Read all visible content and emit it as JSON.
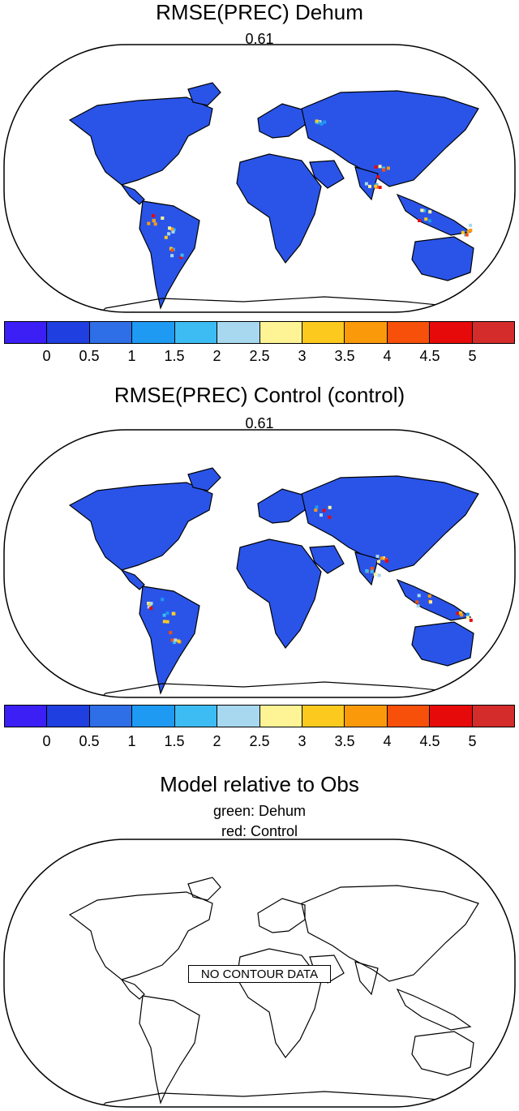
{
  "panels": [
    {
      "title": "RMSE(PREC) Dehum",
      "subtitle": "0.61",
      "land_fill": "#2a54e8",
      "colorbar": {
        "colors": [
          "#3b1ff5",
          "#1f3fe0",
          "#2e6ee6",
          "#1e9af2",
          "#3cbcf2",
          "#a8d8ef",
          "#fef495",
          "#fcc91f",
          "#fa9a0a",
          "#f6500a",
          "#e60a0a",
          "#d42b2b"
        ],
        "labels": [
          "0",
          "0.5",
          "1",
          "1.5",
          "2",
          "2.5",
          "3",
          "3.5",
          "4",
          "4.5",
          "5"
        ]
      }
    },
    {
      "title": "RMSE(PREC) Control (control)",
      "subtitle": "0.61",
      "land_fill": "#2a54e8",
      "colorbar": {
        "colors": [
          "#3b1ff5",
          "#1f3fe0",
          "#2e6ee6",
          "#1e9af2",
          "#3cbcf2",
          "#a8d8ef",
          "#fef495",
          "#fcc91f",
          "#fa9a0a",
          "#f6500a",
          "#e60a0a",
          "#d42b2b"
        ],
        "labels": [
          "0",
          "0.5",
          "1",
          "1.5",
          "2",
          "2.5",
          "3",
          "3.5",
          "4",
          "4.5",
          "5"
        ]
      }
    },
    {
      "title": "Model relative to Obs",
      "subtitle_lines": [
        "green: Dehum",
        "red: Control"
      ],
      "message": "NO CONTOUR DATA"
    }
  ]
}
